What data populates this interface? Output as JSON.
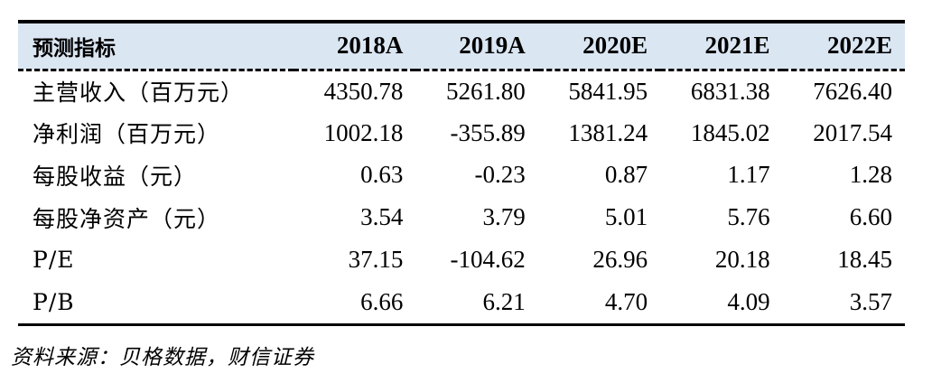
{
  "table": {
    "header": {
      "label": "预测指标",
      "years": [
        "2018A",
        "2019A",
        "2020E",
        "2021E",
        "2022E"
      ]
    },
    "rows": [
      {
        "label": "主营收入（百万元）",
        "values": [
          "4350.78",
          "5261.80",
          "5841.95",
          "6831.38",
          "7626.40"
        ]
      },
      {
        "label": "净利润（百万元）",
        "values": [
          "1002.18",
          "-355.89",
          "1381.24",
          "1845.02",
          "2017.54"
        ]
      },
      {
        "label": "每股收益（元）",
        "values": [
          "0.63",
          "-0.23",
          "0.87",
          "1.17",
          "1.28"
        ]
      },
      {
        "label": "每股净资产（元）",
        "values": [
          "3.54",
          "3.79",
          "5.01",
          "5.76",
          "6.60"
        ]
      },
      {
        "label": "P/E",
        "values": [
          "37.15",
          "-104.62",
          "26.96",
          "20.18",
          "18.45"
        ]
      },
      {
        "label": "P/B",
        "values": [
          "6.66",
          "6.21",
          "4.70",
          "4.09",
          "3.57"
        ]
      }
    ]
  },
  "source": "资料来源：贝格数据，财信证券",
  "colors": {
    "header_background": "#dbe6f3",
    "rule": "#000000"
  }
}
